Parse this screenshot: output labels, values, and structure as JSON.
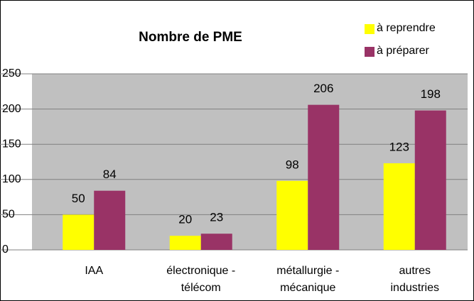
{
  "chart_data": {
    "type": "bar",
    "title": "Nombre de PME",
    "categories": [
      "IAA",
      "électronique -\ntélécom",
      "métallurgie -\nmécanique",
      "autres\nindustries"
    ],
    "series": [
      {
        "name": "à reprendre",
        "color": "#ffff00",
        "values": [
          50,
          20,
          98,
          123
        ]
      },
      {
        "name": "à préparer",
        "color": "#993366",
        "values": [
          84,
          23,
          206,
          198
        ]
      }
    ],
    "ylim": [
      0,
      250
    ],
    "yticks": [
      0,
      50,
      100,
      150,
      200,
      250
    ],
    "grid": true,
    "legend": "top-right"
  }
}
